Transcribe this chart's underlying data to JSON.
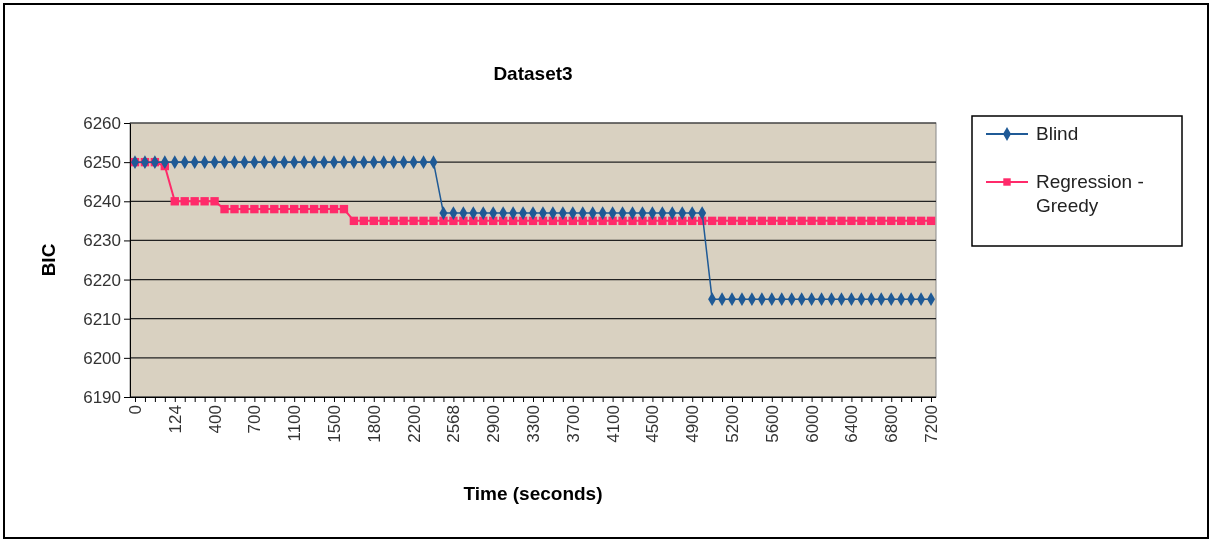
{
  "chart_data": {
    "type": "line",
    "title": "Dataset3",
    "xlabel": "Time (seconds)",
    "ylabel": "BIC",
    "categories": [
      "0",
      null,
      null,
      null,
      "124",
      null,
      null,
      null,
      "400",
      null,
      null,
      null,
      "700",
      null,
      null,
      null,
      "1100",
      null,
      null,
      null,
      "1500",
      null,
      null,
      null,
      "1800",
      null,
      null,
      null,
      "2200",
      null,
      null,
      null,
      "2568",
      null,
      null,
      null,
      "2900",
      null,
      null,
      null,
      "3300",
      null,
      null,
      null,
      "3700",
      null,
      null,
      null,
      "4100",
      null,
      null,
      null,
      "4500",
      null,
      null,
      null,
      "4900",
      null,
      null,
      null,
      "5200",
      null,
      null,
      null,
      "5600",
      null,
      null,
      null,
      "6000",
      null,
      null,
      null,
      "6400",
      null,
      null,
      null,
      "6800",
      null,
      null,
      null,
      "7200"
    ],
    "series": [
      {
        "name": "Blind",
        "color": "#1f5a96",
        "marker": "diamond",
        "values": [
          6250,
          6250,
          6250,
          6250,
          6250,
          6250,
          6250,
          6250,
          6250,
          6250,
          6250,
          6250,
          6250,
          6250,
          6250,
          6250,
          6250,
          6250,
          6250,
          6250,
          6250,
          6250,
          6250,
          6250,
          6250,
          6250,
          6250,
          6250,
          6250,
          6250,
          6250,
          6237,
          6237,
          6237,
          6237,
          6237,
          6237,
          6237,
          6237,
          6237,
          6237,
          6237,
          6237,
          6237,
          6237,
          6237,
          6237,
          6237,
          6237,
          6237,
          6237,
          6237,
          6237,
          6237,
          6237,
          6237,
          6237,
          6237,
          6215,
          6215,
          6215,
          6215,
          6215,
          6215,
          6215,
          6215,
          6215,
          6215,
          6215,
          6215,
          6215,
          6215,
          6215,
          6215,
          6215,
          6215,
          6215,
          6215,
          6215,
          6215,
          6215
        ]
      },
      {
        "name": "Regression - Greedy",
        "color": "#ff2a6a",
        "marker": "square",
        "values": [
          6250,
          6250,
          6250,
          6249,
          6240,
          6240,
          6240,
          6240,
          6240,
          6238,
          6238,
          6238,
          6238,
          6238,
          6238,
          6238,
          6238,
          6238,
          6238,
          6238,
          6238,
          6238,
          6235,
          6235,
          6235,
          6235,
          6235,
          6235,
          6235,
          6235,
          6235,
          6235,
          6235,
          6235,
          6235,
          6235,
          6235,
          6235,
          6235,
          6235,
          6235,
          6235,
          6235,
          6235,
          6235,
          6235,
          6235,
          6235,
          6235,
          6235,
          6235,
          6235,
          6235,
          6235,
          6235,
          6235,
          6235,
          6235,
          6235,
          6235,
          6235,
          6235,
          6235,
          6235,
          6235,
          6235,
          6235,
          6235,
          6235,
          6235,
          6235,
          6235,
          6235,
          6235,
          6235,
          6235,
          6235,
          6235,
          6235,
          6235,
          6235
        ]
      }
    ],
    "ylim": [
      6190,
      6260
    ],
    "yticks": [
      6190,
      6200,
      6210,
      6220,
      6230,
      6240,
      6250,
      6260
    ],
    "grid": "y",
    "legend": "right"
  }
}
